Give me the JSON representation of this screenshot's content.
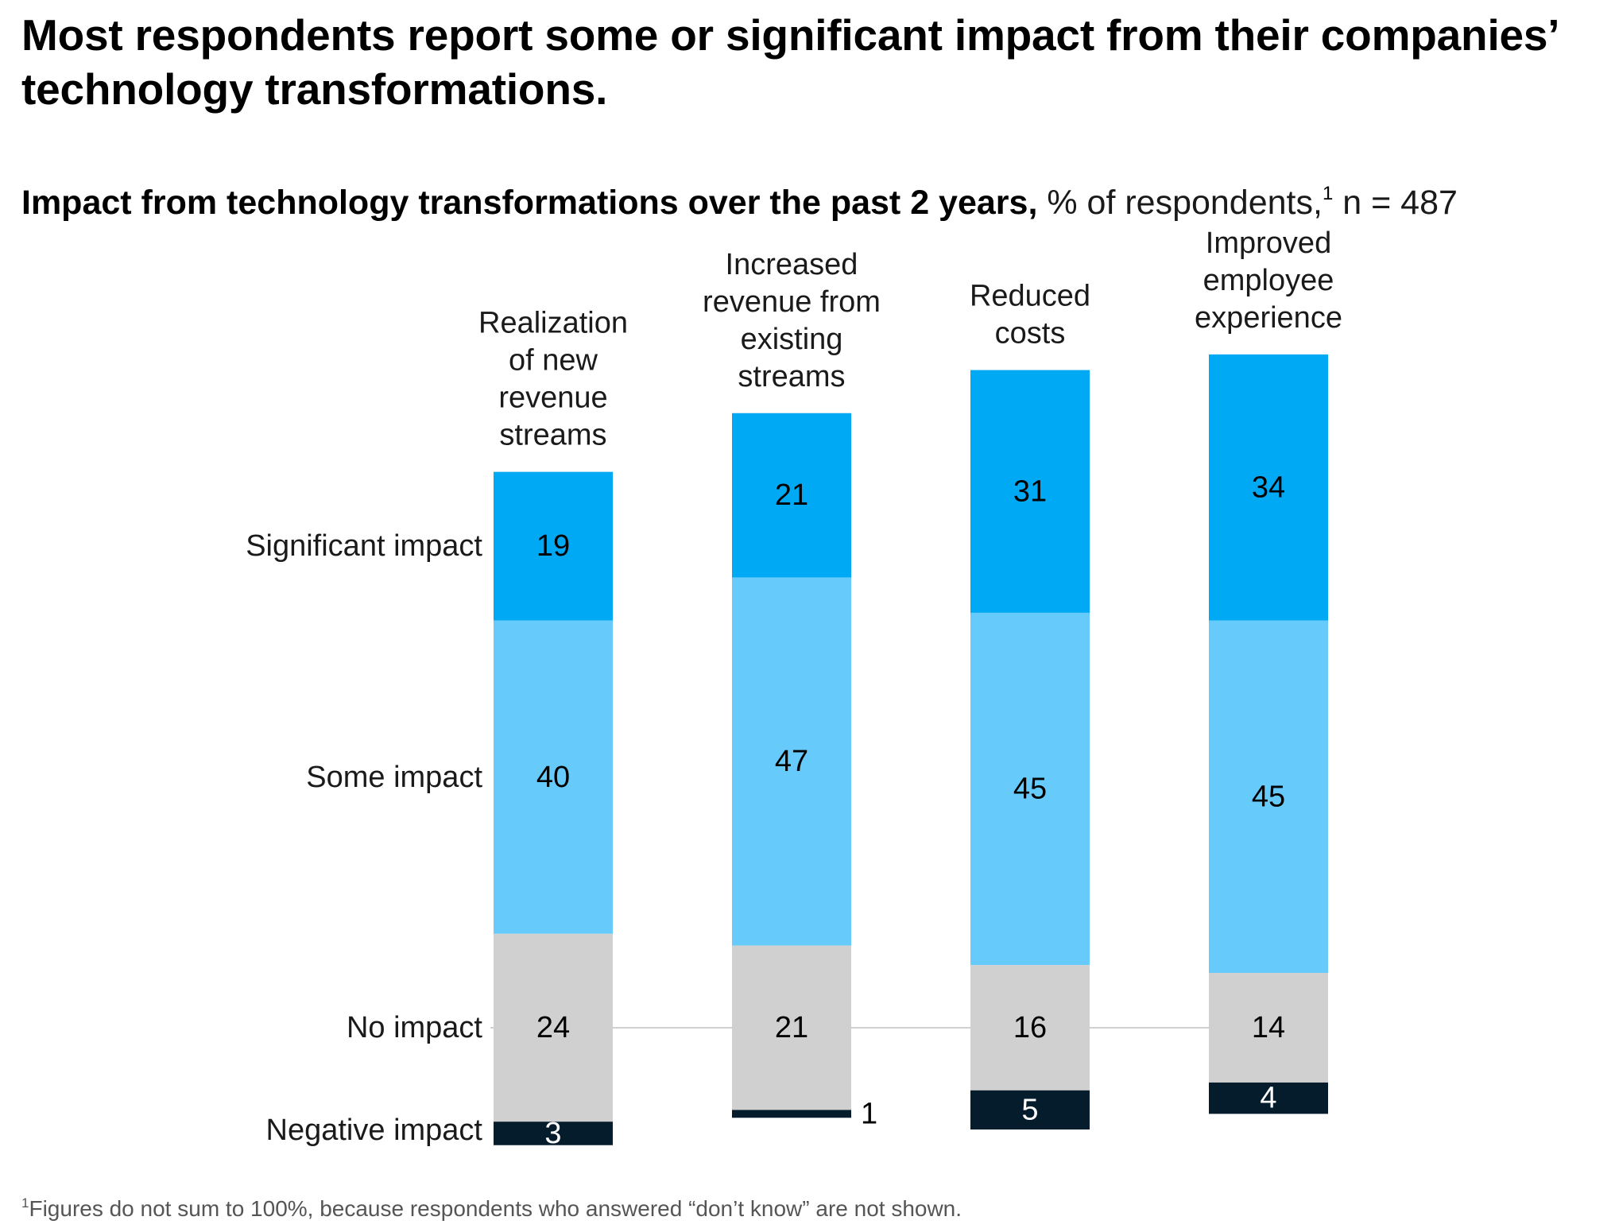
{
  "title": "Most respondents report some or significant impact from their companies’ technology transformations.",
  "subtitle": {
    "bold": "Impact from technology transformations over the past 2 years,",
    "normal": "% of respondents,",
    "sup": "1",
    "tail": "n = 487"
  },
  "footnote": {
    "sup": "1",
    "text": "Figures do not sum to 100%, because respondents who answered “don’t know” are not shown."
  },
  "colors": {
    "significant": "#00a9f4",
    "some": "#66cbfa",
    "none": "#d0d0d0",
    "negative": "#051c2c",
    "gridline": "#d0d0d0"
  },
  "chart_data": {
    "type": "bar",
    "stacked": true,
    "baseline": "No impact",
    "categories": [
      [
        "Realization",
        "of new",
        "revenue",
        "streams"
      ],
      [
        "Increased",
        "revenue from",
        "existing",
        "streams"
      ],
      [
        "Reduced",
        "costs"
      ],
      [
        "Improved",
        "employee",
        "experience"
      ]
    ],
    "series": [
      {
        "name": "Significant impact",
        "values": [
          19,
          21,
          31,
          34
        ]
      },
      {
        "name": "Some impact",
        "values": [
          40,
          47,
          45,
          45
        ]
      },
      {
        "name": "No impact",
        "values": [
          24,
          21,
          16,
          14
        ]
      },
      {
        "name": "Negative impact",
        "values": [
          3,
          1,
          5,
          4
        ]
      }
    ]
  }
}
